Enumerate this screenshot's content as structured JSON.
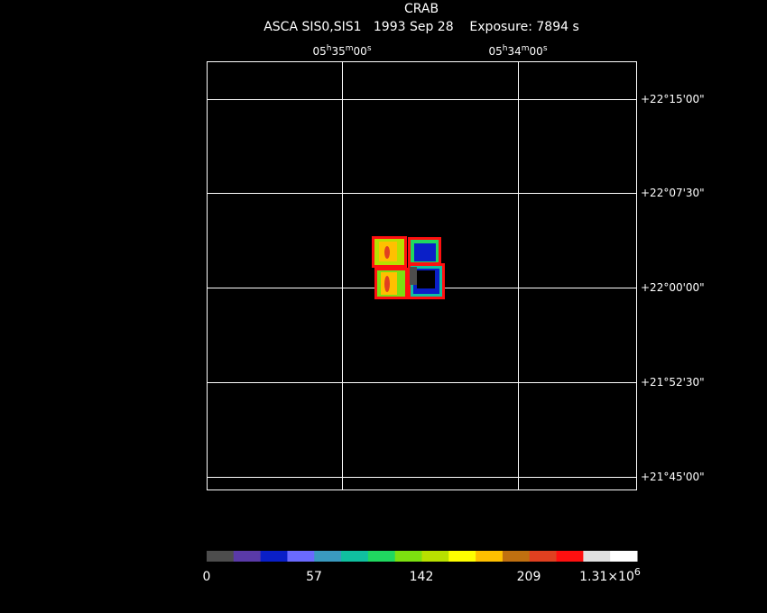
{
  "header": {
    "title": "CRAB",
    "subtitle": "ASCA SIS0,SIS1   1993 Sep 28    Exposure: 7894 s"
  },
  "ra_labels": [
    [
      "05",
      "h",
      "35",
      "m",
      "00",
      "s"
    ],
    [
      "05",
      "h",
      "34",
      "m",
      "00",
      "s"
    ]
  ],
  "dec_labels": [
    "+22°15'00\"",
    "+22°07'30\"",
    "+22°00'00\"",
    "+21°52'30\"",
    "+21°45'00\""
  ],
  "colorbar": {
    "colors": [
      "#4d4d4d",
      "#5a3aa8",
      "#0a1fc8",
      "#6a6aff",
      "#3a9ac0",
      "#10c0a0",
      "#20d860",
      "#7ce010",
      "#b8e000",
      "#ffff00",
      "#ffc000",
      "#c07010",
      "#e04020",
      "#ff1010",
      "#e0e0e0",
      "#ffffff"
    ],
    "labels": [
      "0",
      "57",
      "142",
      "209",
      {
        "base": "1.31×10",
        "exponent": "6"
      }
    ]
  }
}
